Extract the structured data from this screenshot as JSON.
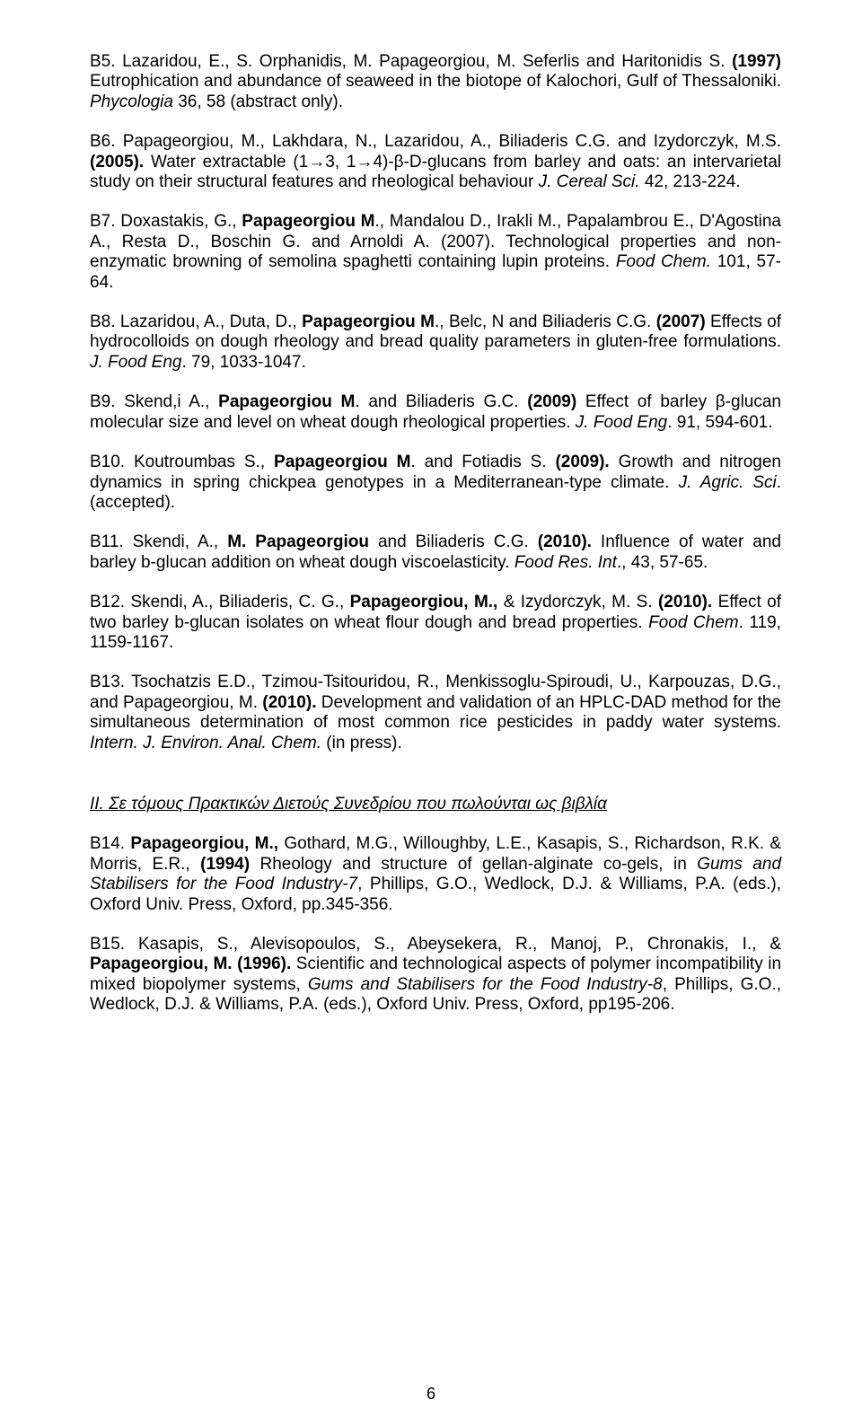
{
  "entries": {
    "b5": {
      "pre": "B5. Lazaridou, E., S. Orphanidis, M. Papageorgiou, M. Seferlis and Haritonidis S. ",
      "bold1": "(1997)",
      "mid": " Eutrophication and abundance of seaweed in the biotope of Kalochori, Gulf of Thessaloniki. ",
      "italic1": "Phycologia",
      "post": " 36, 58 (abstract only)."
    },
    "b6": {
      "pre": "B6. Papageorgiou, M., Lakhdara, N., Lazaridou, A., Biliaderis C.G. and Izydorczyk, M.S. ",
      "bold1": "(2005).",
      "mid": " Water extractable (1→3, 1→4)-β-D-glucans from barley and oats: an intervarietal study on their structural features and rheological behaviour ",
      "italic1": "J. Cereal Sci.",
      "post": " 42, 213-224."
    },
    "b7": {
      "pre": "B7. Doxastakis, G., ",
      "bold1": "Papageorgiou M",
      "mid": "., Mandalou D., Irakli M., Papalambrou E., D'Agostina A., Resta D., Boschin G. and Arnoldi A. (2007). Technological properties and non- enzymatic browning of semolina spaghetti containing lupin proteins. ",
      "italic1": "Food  Chem.",
      "post": " 101, 57-64."
    },
    "b8": {
      "pre": "B8. Lazaridou, A., Duta, D., ",
      "bold1": "Papageorgiou M",
      "mid1": ".,  Belc, N and Biliaderis C.G. ",
      "bold2": "(2007)",
      "mid2": " Effects of hydrocolloids on dough rheology and bread quality parameters in gluten-free formulations. ",
      "italic1": "J. Food Eng",
      "post": ". 79, 1033-1047."
    },
    "b9": {
      "pre": "B9. Skend,i A., ",
      "bold1": "Papageorgiou M",
      "mid1": ". and Biliaderis G.C. ",
      "bold2": "(2009)",
      "mid2": " Effect of barley β-glucan molecular size and level on wheat dough rheological properties. ",
      "italic1": "J. Food Eng",
      "post": ". 91, 594-601."
    },
    "b10": {
      "pre": "B10.   Koutroumbas S., ",
      "bold1": "Papageorgiou M",
      "mid1": ". and Fotiadis S. ",
      "bold2": "(2009).",
      "mid2": " Growth and nitrogen dynamics in spring chickpea genotypes in a Mediterranean-type climate. ",
      "italic1": "J. Agric. Sci",
      "post": ". (accepted)."
    },
    "b11": {
      "pre": "B11. Skendi, A., ",
      "bold1": "M. Papageorgiou",
      "mid1": " and Biliaderis C.G. ",
      "bold2": "(2010).",
      "mid2": " Influence of water and barley b-glucan addition on wheat dough viscoelasticity. ",
      "italic1": "Food Res. Int",
      "post": "., 43, 57-65."
    },
    "b12": {
      "pre": "B12. Skendi, A., Biliaderis, C. G., ",
      "bold1": "Papageorgiou, M.,",
      "mid1": " & Izydorczyk, M. S. ",
      "bold2": "(2010).",
      "mid2": " Effect of two barley b-glucan isolates on wheat flour dough and bread properties. ",
      "italic1": "Food Chem",
      "post": ". 119, 1159-1167."
    },
    "b13": {
      "pre": "B13. Tsochatzis E.D., Tzimou-Tsitouridou, R., Menkissoglu-Spiroudi, U., Karpouzas, D.G., and Papageorgiou, M. ",
      "bold1": "(2010).",
      "mid1": " Development and validation of an HPLC-DAD method for the simultaneous determination of most common rice pesticides in paddy water systems. ",
      "italic1": "Intern. J. Environ. Anal. Chem.",
      "post": " (in press)."
    },
    "heading2": "II. Σε τόμους Πρακτικών Διετούς Συνεδρίου που πωλούνται ως βιβλία",
    "b14": {
      "pre": "B14. ",
      "bold1": "Papageorgiou, M.,",
      "mid1": " Gothard, M.G., Willoughby, L.E., Kasapis, S., Richardson, R.K. & Morris, E.R., ",
      "bold2": "(1994)",
      "mid2": " Rheology and structure of gellan-alginate co-gels, in ",
      "italic1": "Gums and Stabilisers for the Food Industry-7",
      "post": ", Phillips, G.O., Wedlock, D.J. & Williams, P.A. (eds.), Oxford Univ. Press, Oxford, pp.345-356."
    },
    "b15": {
      "pre": "B15. Kasapis, S., Alevisopoulos, S., Abeysekera, R., Manoj, P., Chronakis, I., & ",
      "bold1": "Papageorgiou, M. (1996).",
      "mid1": " Scientific and technological aspects of polymer incompatibility in mixed biopolymer systems, ",
      "italic1": "Gums and Stabilisers for the Food Industry-8",
      "post": ", Phillips, G.O., Wedlock, D.J. & Williams, P.A. (eds.), Oxford Univ. Press, Oxford, pp195-206."
    }
  },
  "page_number": "6"
}
